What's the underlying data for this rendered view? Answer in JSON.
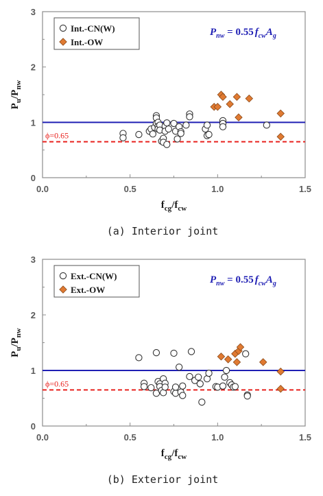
{
  "colors": {
    "nominal_line": "#1f1fb4",
    "phi_line": "#e8201c",
    "open_marker_stroke": "#333333",
    "filled_marker": "#e07a32",
    "filled_marker_stroke": "#8a4a1a",
    "formula": "#1f1fb4"
  },
  "chart_data": [
    {
      "type": "scatter",
      "caption": "(a) Interior joint",
      "xlabel_main": "f",
      "xlabel_sub1": "cg",
      "xlabel_sep": "/f",
      "xlabel_sub2": "cw",
      "ylabel_main": "P",
      "ylabel_sub1": "u",
      "ylabel_sep": "/P",
      "ylabel_sub2": "nw",
      "xlim": [
        0,
        1.5
      ],
      "ylim": [
        0,
        3
      ],
      "xticks": [
        "0.0",
        "0.5",
        "1.0",
        "1.5"
      ],
      "yticks": [
        "0",
        "1",
        "2",
        "3"
      ],
      "legend_position": "top-left",
      "formula": {
        "P": "P",
        "nw": "nw",
        "eq": " = 0.55",
        "f": "f",
        "cw": "cw",
        "A": "A",
        "g": "g"
      },
      "reference_lines": [
        {
          "y": 1.0,
          "style": "solid",
          "label": ""
        },
        {
          "y": 0.65,
          "style": "dashed",
          "label": "ϕ=0.65"
        }
      ],
      "series": [
        {
          "name": "Int.-CN(W)",
          "marker": "open-circle",
          "x": [
            0.46,
            0.46,
            0.55,
            0.61,
            0.62,
            0.63,
            0.64,
            0.65,
            0.65,
            0.65,
            0.66,
            0.66,
            0.66,
            0.67,
            0.67,
            0.68,
            0.69,
            0.69,
            0.7,
            0.7,
            0.71,
            0.71,
            0.72,
            0.75,
            0.76,
            0.77,
            0.78,
            0.79,
            0.79,
            0.82,
            0.84,
            0.84,
            0.93,
            0.94,
            0.94,
            0.95,
            1.03,
            1.03,
            1.03,
            1.28
          ],
          "y": [
            0.8,
            0.72,
            0.78,
            0.84,
            0.88,
            0.79,
            0.91,
            1.12,
            1.08,
            0.98,
            1.0,
            0.93,
            0.88,
            0.95,
            0.86,
            0.66,
            0.71,
            0.64,
            0.93,
            0.84,
            0.99,
            0.6,
            0.88,
            0.98,
            0.84,
            0.7,
            0.92,
            0.83,
            0.8,
            0.95,
            1.15,
            1.1,
            0.88,
            0.95,
            0.76,
            0.78,
            1.03,
            0.98,
            0.92,
            0.95
          ]
        },
        {
          "name": "Int.-OW",
          "marker": "filled-diamond",
          "x": [
            0.98,
            1.0,
            1.02,
            1.03,
            1.07,
            1.11,
            1.12,
            1.18,
            1.36,
            1.36
          ],
          "y": [
            1.28,
            1.28,
            1.5,
            1.46,
            1.33,
            1.46,
            1.09,
            1.43,
            1.16,
            0.74
          ]
        }
      ]
    },
    {
      "type": "scatter",
      "caption": "(b) Exterior joint",
      "xlabel_main": "f",
      "xlabel_sub1": "cg",
      "xlabel_sep": "/f",
      "xlabel_sub2": "cw",
      "ylabel_main": "P",
      "ylabel_sub1": "u",
      "ylabel_sep": "/P",
      "ylabel_sub2": "nw",
      "xlim": [
        0,
        1.5
      ],
      "ylim": [
        0,
        3
      ],
      "xticks": [
        "0.0",
        "0.5",
        "1.0",
        "1.5"
      ],
      "yticks": [
        "0",
        "1",
        "2",
        "3"
      ],
      "legend_position": "top-left",
      "formula": {
        "P": "P",
        "nw": "nw",
        "eq": " = 0.55",
        "f": "f",
        "cw": "cw",
        "A": "A",
        "g": "g"
      },
      "reference_lines": [
        {
          "y": 1.0,
          "style": "solid",
          "label": ""
        },
        {
          "y": 0.65,
          "style": "dashed",
          "label": "ϕ=0.65"
        }
      ],
      "series": [
        {
          "name": "Ext.-CN(W)",
          "marker": "open-circle",
          "x": [
            0.55,
            0.58,
            0.58,
            0.62,
            0.65,
            0.65,
            0.66,
            0.67,
            0.67,
            0.68,
            0.69,
            0.69,
            0.7,
            0.7,
            0.75,
            0.75,
            0.76,
            0.76,
            0.78,
            0.79,
            0.8,
            0.8,
            0.84,
            0.85,
            0.87,
            0.89,
            0.9,
            0.91,
            0.94,
            0.95,
            0.99,
            1.0,
            1.03,
            1.04,
            1.05,
            1.07,
            1.08,
            1.09,
            1.1,
            1.16,
            1.17,
            1.17
          ],
          "y": [
            1.23,
            0.77,
            0.71,
            0.69,
            1.32,
            0.59,
            0.8,
            0.76,
            0.71,
            0.64,
            0.85,
            0.6,
            0.77,
            0.7,
            1.31,
            0.62,
            0.59,
            0.7,
            1.06,
            0.61,
            0.72,
            0.55,
            0.89,
            1.34,
            0.82,
            0.88,
            0.76,
            0.43,
            0.85,
            0.95,
            0.71,
            0.7,
            0.72,
            0.88,
            1.0,
            0.78,
            0.74,
            0.7,
            0.71,
            1.3,
            0.56,
            0.54
          ]
        },
        {
          "name": "Ext.-OW",
          "marker": "filled-diamond",
          "x": [
            1.02,
            1.06,
            1.1,
            1.11,
            1.12,
            1.13,
            1.26,
            1.36,
            1.36
          ],
          "y": [
            1.25,
            1.2,
            1.3,
            1.15,
            1.35,
            1.42,
            1.15,
            0.98,
            0.67
          ]
        }
      ]
    }
  ]
}
